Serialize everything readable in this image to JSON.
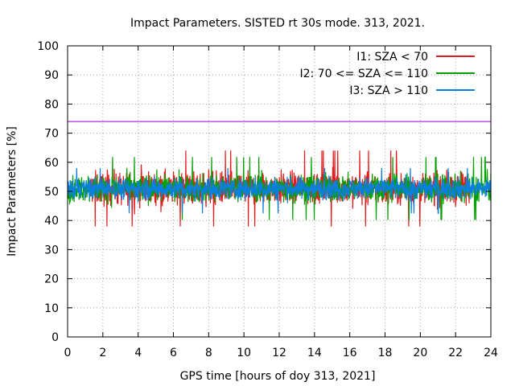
{
  "chart_data": {
    "type": "line",
    "title": "Impact Parameters. SISTED rt 30s mode. 313, 2021.",
    "xlabel": "GPS time [hours of doy 313, 2021]",
    "ylabel": "Impact Parameters [%]",
    "xlim": [
      0,
      24
    ],
    "ylim": [
      0,
      100
    ],
    "xticks": [
      0,
      2,
      4,
      6,
      8,
      10,
      12,
      14,
      16,
      18,
      20,
      22,
      24
    ],
    "yticks": [
      0,
      10,
      20,
      30,
      40,
      50,
      60,
      70,
      80,
      90,
      100
    ],
    "grid": true,
    "legend_position": "top-right",
    "reference_line": {
      "y": 74,
      "color": "#9400d3"
    },
    "series": [
      {
        "name": "I1: SZA < 70",
        "color": "#e41a1c",
        "center": 51,
        "range": [
          37,
          66
        ]
      },
      {
        "name": "I2: 70 <= SZA <= 110",
        "color": "#00a000",
        "center": 51,
        "range": [
          40,
          64
        ]
      },
      {
        "name": "I3: SZA > 110",
        "color": "#0b7fe0",
        "center": 51,
        "range": [
          39,
          58
        ]
      }
    ]
  }
}
